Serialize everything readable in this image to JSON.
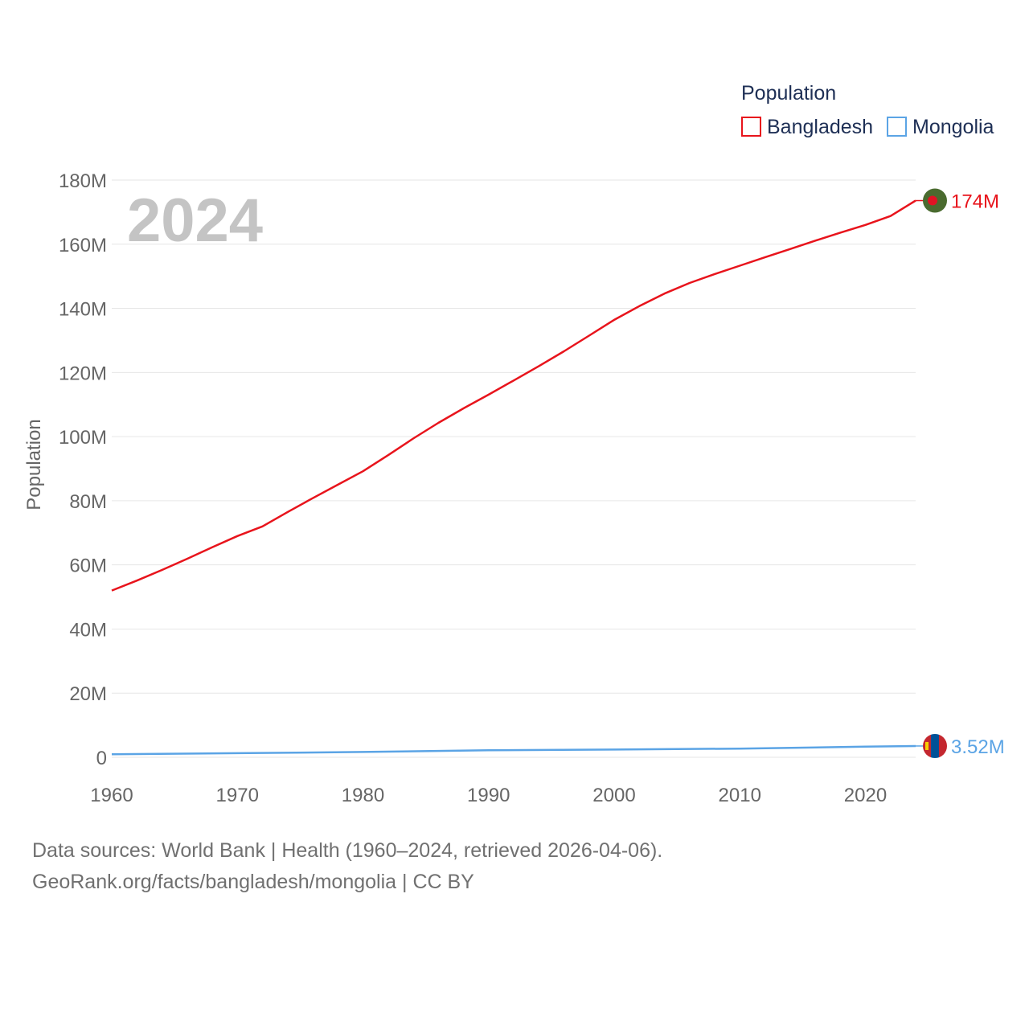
{
  "chart_data": {
    "type": "line",
    "title": "Population",
    "ylabel": "Population",
    "xlabel": "",
    "year_label": "2024",
    "xlim": [
      1960,
      2024
    ],
    "ylim": [
      0,
      180000000
    ],
    "x_ticks": [
      1960,
      1970,
      1980,
      1990,
      2000,
      2010,
      2020
    ],
    "x_tick_labels": [
      "1960",
      "1970",
      "1980",
      "1990",
      "2000",
      "2010",
      "2020"
    ],
    "y_ticks": [
      0,
      20000000,
      40000000,
      60000000,
      80000000,
      100000000,
      120000000,
      140000000,
      160000000,
      180000000
    ],
    "y_tick_labels": [
      "0",
      "20M",
      "40M",
      "60M",
      "80M",
      "100M",
      "120M",
      "140M",
      "160M",
      "180M"
    ],
    "grid": true,
    "legend_position": "top-right",
    "legend_title": "Population",
    "series": [
      {
        "name": "Bangladesh",
        "color": "#e8141c",
        "end_label": "174M",
        "flag_icon": "bangladesh-flag-icon",
        "x": [
          1960,
          1962,
          1964,
          1966,
          1968,
          1970,
          1972,
          1974,
          1976,
          1978,
          1980,
          1982,
          1984,
          1986,
          1988,
          1990,
          1992,
          1994,
          1996,
          1998,
          2000,
          2002,
          2004,
          2006,
          2008,
          2010,
          2012,
          2014,
          2016,
          2018,
          2020,
          2022,
          2024
        ],
        "values": [
          52000000,
          55100000,
          58400000,
          61900000,
          65500000,
          69000000,
          72000000,
          76500000,
          80800000,
          85000000,
          89200000,
          94200000,
          99400000,
          104300000,
          108800000,
          113100000,
          117500000,
          122000000,
          126600000,
          131500000,
          136400000,
          140700000,
          144600000,
          147900000,
          150700000,
          153300000,
          155900000,
          158500000,
          161100000,
          163600000,
          166000000,
          168800000,
          173600000
        ]
      },
      {
        "name": "Mongolia",
        "color": "#5ba4e5",
        "end_label": "3.52M",
        "flag_icon": "mongolia-flag-icon",
        "x": [
          1960,
          1970,
          1980,
          1990,
          2000,
          2010,
          2020,
          2024
        ],
        "values": [
          950000,
          1280000,
          1660000,
          2180000,
          2400000,
          2700000,
          3300000,
          3520000
        ]
      }
    ]
  },
  "footer": {
    "line1": "Data sources: World Bank | Health (1960–2024, retrieved 2026-04-06).",
    "line2": "GeoRank.org/facts/bangladesh/mongolia | CC BY"
  }
}
